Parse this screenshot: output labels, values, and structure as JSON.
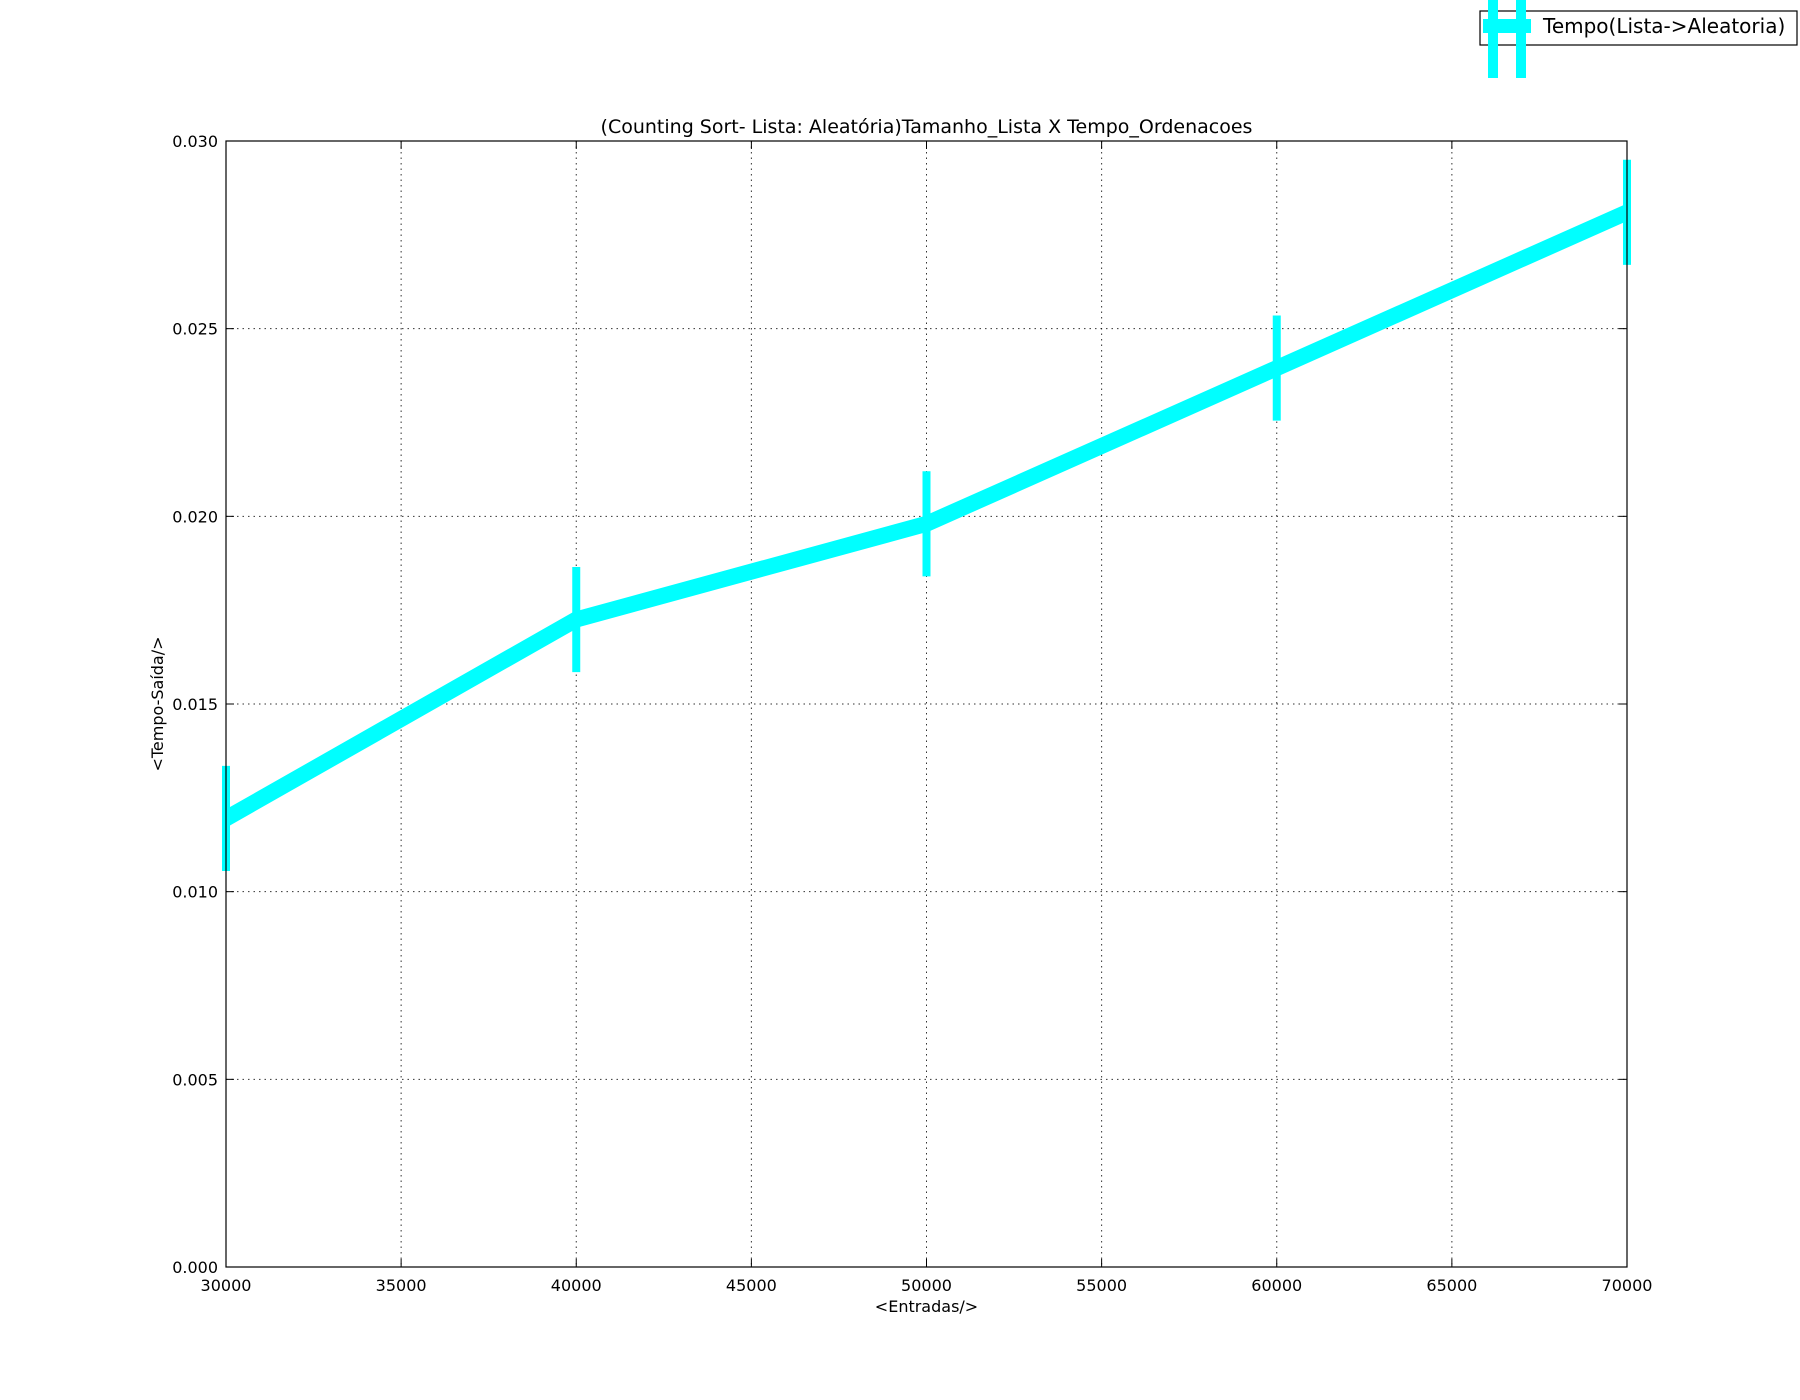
{
  "chart_data": {
    "type": "line",
    "title": "(Counting Sort- Lista: Aleatória)Tamanho_Lista X Tempo_Ordenacoes",
    "xlabel": "<Entradas/>",
    "ylabel": "<Tempo-Saída/>",
    "xlim": [
      30000,
      70000
    ],
    "ylim": [
      0.0,
      0.03
    ],
    "x_ticks": [
      "30000",
      "35000",
      "40000",
      "45000",
      "50000",
      "55000",
      "60000",
      "65000",
      "70000"
    ],
    "y_ticks": [
      "0.000",
      "0.005",
      "0.010",
      "0.015",
      "0.020",
      "0.025",
      "0.030"
    ],
    "grid": true,
    "legend_position": "top-right, outside plot area",
    "series": [
      {
        "name": "Tempo(Lista->Aleatoria)",
        "color": "#00ffff",
        "x": [
          30000,
          40000,
          50000,
          60000,
          70000
        ],
        "y": [
          0.01195,
          0.01725,
          0.0198,
          0.02395,
          0.0281
        ],
        "error": [
          0.0014,
          0.0014,
          0.0014,
          0.0014,
          0.0014
        ]
      }
    ]
  }
}
